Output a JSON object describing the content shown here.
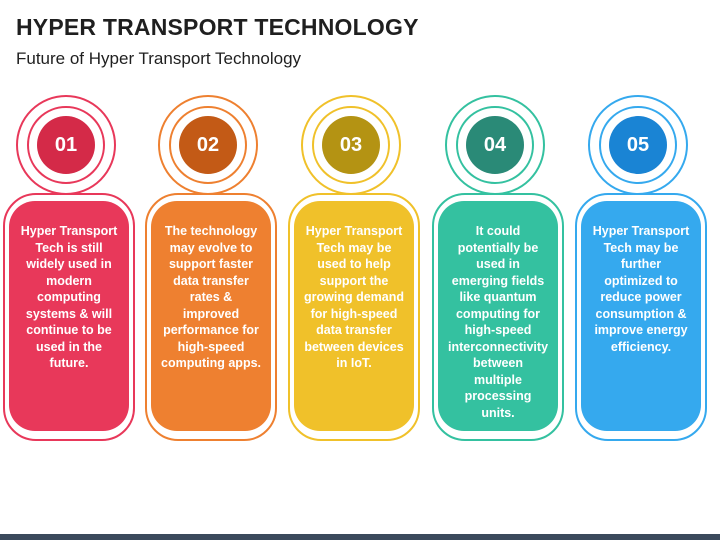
{
  "title": "HYPER TRANSPORT TECHNOLOGY",
  "subtitle": "Future of Hyper Transport Technology",
  "cards": [
    {
      "number": "01",
      "text": "Hyper Transport Tech is still widely used in modern computing systems & will continue to be used in the future.",
      "color": "#e8385a",
      "dark": "#d42a48"
    },
    {
      "number": "02",
      "text": "The technology may evolve to support faster data transfer rates & improved performance for high-speed computing apps.",
      "color": "#ee8030",
      "dark": "#c35a16"
    },
    {
      "number": "03",
      "text": "Hyper Transport Tech may be used to help support the growing demand for high-speed data transfer between devices in IoT.",
      "color": "#f0c12a",
      "dark": "#b49313"
    },
    {
      "number": "04",
      "text": "It could potentially be used in emerging fields like quantum computing for high-speed interconnectivity between multiple processing units.",
      "color": "#34c1a0",
      "dark": "#2a8a77"
    },
    {
      "number": "05",
      "text": "Hyper Transport Tech may be further optimized to reduce power consumption & improve energy efficiency.",
      "color": "#35a9ee",
      "dark": "#1a84d4"
    }
  ]
}
